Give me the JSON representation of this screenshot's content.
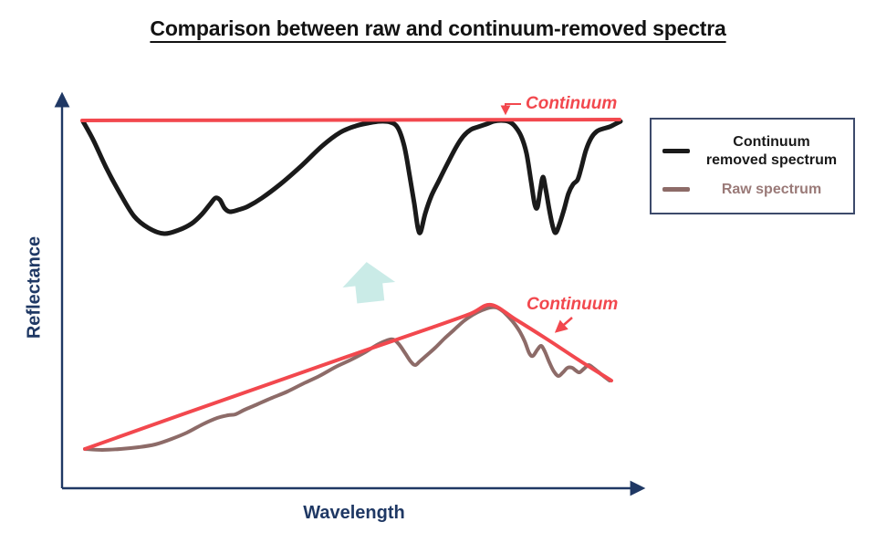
{
  "title": "Comparison between raw and continuum-removed spectra",
  "colors": {
    "title_ink": "#121212",
    "axis": "#1f3864",
    "red": "#f2484e",
    "ink": "#1a1a1a",
    "raw": "#8d6b68",
    "raw_text": "#9a7a78",
    "teal": "#c6e9e5",
    "legend_border": "#3d4a6b"
  },
  "axes": {
    "x_label": "Wavelength",
    "y_label": "Reflectance"
  },
  "annotations": {
    "top_continuum": "Continuum",
    "bottom_continuum": "Continuum"
  },
  "legend": {
    "items": [
      {
        "label": "Continuum removed spectrum",
        "lines": [
          "Continuum",
          "removed spectrum"
        ],
        "color": "#1a1a1a",
        "text_color": "#1a1a1a"
      },
      {
        "label": "Raw spectrum",
        "lines": [
          "Raw spectrum"
        ],
        "color": "#8d6b68",
        "text_color": "#9a7a78"
      }
    ]
  },
  "chart_data": {
    "type": "line",
    "title": "Comparison between raw and continuum-removed spectra",
    "xlabel": "Wavelength",
    "ylabel": "Reflectance",
    "axes_numeric": false,
    "note": "Schematic spectra; no numeric ticks shown. Point coordinates are canvas pixels (960x595), y increases downward.",
    "series": [
      {
        "id": "continuum-removed-spectrum",
        "name": "Continuum removed spectrum",
        "color": "#1a1a1a",
        "stroke_width": 5,
        "smooth": true,
        "points": [
          [
            91,
            133
          ],
          [
            102,
            153
          ],
          [
            116,
            183
          ],
          [
            131,
            211
          ],
          [
            147,
            237
          ],
          [
            163,
            250
          ],
          [
            180,
            256
          ],
          [
            196,
            252
          ],
          [
            210,
            245
          ],
          [
            221,
            235
          ],
          [
            230,
            224
          ],
          [
            236,
            217
          ],
          [
            241,
            219
          ],
          [
            246,
            228
          ],
          [
            252,
            232
          ],
          [
            261,
            230
          ],
          [
            272,
            226
          ],
          [
            287,
            217
          ],
          [
            307,
            202
          ],
          [
            330,
            182
          ],
          [
            353,
            160
          ],
          [
            373,
            145
          ],
          [
            390,
            138
          ],
          [
            403,
            135
          ],
          [
            416,
            133
          ],
          [
            428,
            134
          ],
          [
            436,
            140
          ],
          [
            443,
            160
          ],
          [
            449,
            193
          ],
          [
            454,
            223
          ],
          [
            458,
            250
          ],
          [
            461,
            254
          ],
          [
            466,
            234
          ],
          [
            473,
            214
          ],
          [
            481,
            198
          ],
          [
            490,
            180
          ],
          [
            500,
            161
          ],
          [
            508,
            149
          ],
          [
            516,
            142
          ],
          [
            524,
            139
          ],
          [
            533,
            136
          ],
          [
            541,
            133
          ],
          [
            549,
            132
          ],
          [
            557,
            133
          ],
          [
            564,
            138
          ],
          [
            571,
            149
          ],
          [
            577,
            168
          ],
          [
            582,
            199
          ],
          [
            586,
            224
          ],
          [
            589,
            227
          ],
          [
            592,
            209
          ],
          [
            595,
            194
          ],
          [
            598,
            207
          ],
          [
            602,
            230
          ],
          [
            606,
            249
          ],
          [
            609,
            255
          ],
          [
            613,
            246
          ],
          [
            618,
            230
          ],
          [
            623,
            212
          ],
          [
            628,
            202
          ],
          [
            633,
            197
          ],
          [
            637,
            184
          ],
          [
            642,
            165
          ],
          [
            648,
            151
          ],
          [
            654,
            144
          ],
          [
            661,
            141
          ],
          [
            668,
            139
          ],
          [
            674,
            136
          ],
          [
            680,
            133
          ]
        ]
      },
      {
        "id": "continuum-top",
        "name": "Continuum (flat line of continuum-removed spectrum)",
        "color": "#f2484e",
        "stroke_width": 4,
        "smooth": false,
        "points": [
          [
            90,
            132
          ],
          [
            679,
            131
          ]
        ]
      },
      {
        "id": "raw-spectrum",
        "name": "Raw spectrum",
        "color": "#8d6b68",
        "stroke_width": 4,
        "smooth": true,
        "points": [
          [
            93,
            492
          ],
          [
            112,
            493
          ],
          [
            132,
            492
          ],
          [
            152,
            490
          ],
          [
            170,
            487
          ],
          [
            188,
            481
          ],
          [
            205,
            474
          ],
          [
            222,
            465
          ],
          [
            238,
            458
          ],
          [
            250,
            455
          ],
          [
            258,
            454
          ],
          [
            268,
            449
          ],
          [
            282,
            443
          ],
          [
            298,
            436
          ],
          [
            315,
            429
          ],
          [
            333,
            420
          ],
          [
            350,
            412
          ],
          [
            368,
            402
          ],
          [
            385,
            394
          ],
          [
            400,
            386
          ],
          [
            413,
            378
          ],
          [
            424,
            373
          ],
          [
            431,
            372
          ],
          [
            437,
            377
          ],
          [
            444,
            387
          ],
          [
            450,
            396
          ],
          [
            455,
            400
          ],
          [
            460,
            396
          ],
          [
            468,
            389
          ],
          [
            477,
            381
          ],
          [
            487,
            371
          ],
          [
            497,
            362
          ],
          [
            508,
            352
          ],
          [
            518,
            345
          ],
          [
            528,
            340
          ],
          [
            537,
            337
          ],
          [
            544,
            337
          ],
          [
            551,
            341
          ],
          [
            558,
            348
          ],
          [
            564,
            355
          ],
          [
            570,
            364
          ],
          [
            575,
            374
          ],
          [
            580,
            387
          ],
          [
            584,
            390
          ],
          [
            589,
            383
          ],
          [
            593,
            379
          ],
          [
            597,
            385
          ],
          [
            602,
            397
          ],
          [
            607,
            407
          ],
          [
            612,
            412
          ],
          [
            617,
            408
          ],
          [
            622,
            403
          ],
          [
            627,
            403
          ],
          [
            631,
            406
          ],
          [
            635,
            408
          ],
          [
            640,
            404
          ],
          [
            645,
            400
          ],
          [
            650,
            403
          ],
          [
            655,
            407
          ],
          [
            660,
            411
          ],
          [
            664,
            414
          ],
          [
            668,
            417
          ]
        ]
      },
      {
        "id": "raw-continuum-hull",
        "name": "Continuum (convex hull over raw spectrum)",
        "color": "#f2484e",
        "stroke_width": 4,
        "smooth": true,
        "points": [
          [
            93,
            492
          ],
          [
            200,
            454
          ],
          [
            300,
            419
          ],
          [
            400,
            384
          ],
          [
            470,
            360
          ],
          [
            515,
            344
          ],
          [
            538,
            334
          ],
          [
            565,
            350
          ],
          [
            600,
            372
          ],
          [
            635,
            395
          ],
          [
            670,
            417
          ]
        ]
      }
    ]
  }
}
